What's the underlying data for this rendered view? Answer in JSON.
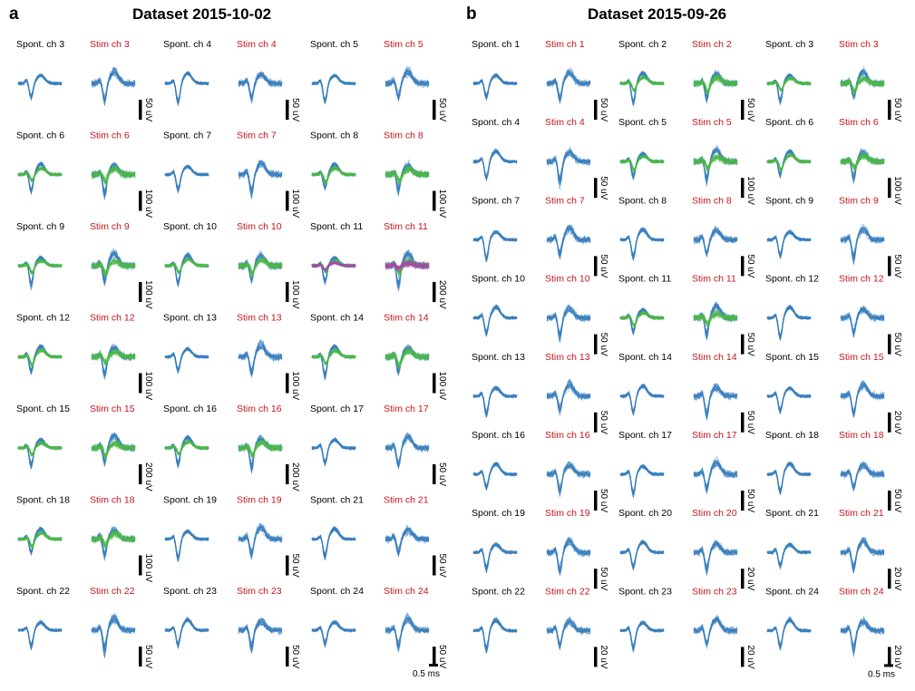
{
  "panels": [
    {
      "letter": "a",
      "title": "Dataset 2015-10-02",
      "rows": [
        [
          "Spont. ch 3",
          "Stim ch 3",
          "Spont. ch 4",
          "Stim ch 4",
          "Spont. ch 5",
          "Stim ch 5"
        ],
        [
          "Spont. ch 6",
          "Stim ch 6",
          "Spont. ch 7",
          "Stim ch 7",
          "Spont. ch 8",
          "Stim ch 8"
        ],
        [
          "Spont. ch 9",
          "Stim ch 9",
          "Spont. ch 10",
          "Stim ch 10",
          "Spont. ch 11",
          "Stim ch 11"
        ],
        [
          "Spont. ch 12",
          "Stim ch 12",
          "Spont. ch 13",
          "Stim ch 13",
          "Spont. ch 14",
          "Stim ch 14"
        ],
        [
          "Spont. ch 15",
          "Stim ch 15",
          "Spont. ch 16",
          "Stim ch 16",
          "Spont. ch 17",
          "Stim ch 17"
        ],
        [
          "Spont. ch 18",
          "Stim ch 18",
          "Spont. ch 19",
          "Stim ch 19",
          "Spont. ch 21",
          "Stim ch 21"
        ],
        [
          "Spont. ch 22",
          "Stim ch 22",
          "Spont. ch 23",
          "Stim ch 23",
          "Spont. ch 24",
          "Stim ch 24"
        ]
      ],
      "scales": [
        [
          "50 uV",
          "50 uV",
          "50 uV"
        ],
        [
          "100 uV",
          "100 uV",
          "100 uV"
        ],
        [
          "100 uV",
          "100 uV",
          "200 uV"
        ],
        [
          "100 uV",
          "100 uV",
          "100 uV"
        ],
        [
          "200 uV",
          "200 uV",
          "50 uV"
        ],
        [
          "100 uV",
          "50 uV",
          "50 uV"
        ],
        [
          "50 uV",
          "50 uV",
          "50 uV"
        ]
      ],
      "units": [
        [
          "1",
          "1",
          "1"
        ],
        [
          "2",
          "1",
          "2"
        ],
        [
          "2",
          "2",
          "3"
        ],
        [
          "2",
          "1",
          "2"
        ],
        [
          "2",
          "2",
          "1"
        ],
        [
          "2",
          "1",
          "1"
        ],
        [
          "1",
          "1",
          "1"
        ]
      ],
      "time_scale": "0.5 ms"
    },
    {
      "letter": "b",
      "title": "Dataset 2015-09-26",
      "rows": [
        [
          "Spont. ch 1",
          "Stim ch 1",
          "Spont. ch 2",
          "Stim ch 2",
          "Spont. ch 3",
          "Stim ch 3"
        ],
        [
          "Spont. ch 4",
          "Stim ch 4",
          "Spont. ch 5",
          "Stim ch 5",
          "Spont. ch 6",
          "Stim ch 6"
        ],
        [
          "Spont. ch 7",
          "Stim ch 7",
          "Spont. ch 8",
          "Stim ch 8",
          "Spont. ch 9",
          "Stim ch 9"
        ],
        [
          "Spont. ch 10",
          "Stim ch 10",
          "Spont. ch 11",
          "Stim ch 11",
          "Spont. ch 12",
          "Stim ch 12"
        ],
        [
          "Spont. ch 13",
          "Stim ch 13",
          "Spont. ch 14",
          "Stim ch 14",
          "Spont. ch 15",
          "Stim ch 15"
        ],
        [
          "Spont. ch 16",
          "Stim ch 16",
          "Spont. ch 17",
          "Stim ch 17",
          "Spont. ch 18",
          "Stim ch 18"
        ],
        [
          "Spont. ch 19",
          "Stim ch 19",
          "Spont. ch 20",
          "Stim ch 20",
          "Spont. ch 21",
          "Stim ch 21"
        ],
        [
          "Spont. ch 22",
          "Stim ch 22",
          "Spont. ch 23",
          "Stim ch 23",
          "Spont. ch 24",
          "Stim ch 24"
        ]
      ],
      "scales": [
        [
          "50 uV",
          "50 uV",
          "50 uV"
        ],
        [
          "50 uV",
          "100 uV",
          "100 uV"
        ],
        [
          "50 uV",
          "50 uV",
          "50 uV"
        ],
        [
          "50 uV",
          "50 uV",
          "50 uV"
        ],
        [
          "50 uV",
          "50 uV",
          "20 uV"
        ],
        [
          "50 uV",
          "50 uV",
          "50 uV"
        ],
        [
          "50 uV",
          "20 uV",
          "20 uV"
        ],
        [
          "20 uV",
          "20 uV",
          "20 uV"
        ]
      ],
      "units": [
        [
          "1",
          "2",
          "2"
        ],
        [
          "1",
          "2",
          "2"
        ],
        [
          "1",
          "1",
          "1"
        ],
        [
          "1",
          "2",
          "1"
        ],
        [
          "1",
          "1",
          "1"
        ],
        [
          "1",
          "1",
          "1"
        ],
        [
          "1",
          "1",
          "1"
        ],
        [
          "1",
          "1",
          "1"
        ]
      ],
      "time_scale": "0.5 ms"
    }
  ],
  "colors": {
    "unit1": "#3a7fbd",
    "unit2": "#4cb848",
    "unit3": "#a24ea8",
    "spont_label": "#000000",
    "stim_label": "#c4161c",
    "scalebar": "#000000"
  },
  "chart_data": {
    "type": "waveform-grid",
    "description_source": "Spike waveform overlays; Spont. vs Stim conditions per channel",
    "series_per_cell_from": "units",
    "amplitude_scales_from": "scales",
    "time_scale": "0.5 ms"
  }
}
